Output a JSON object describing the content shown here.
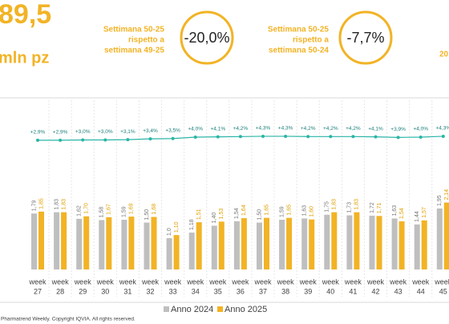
{
  "header": {
    "value": "89,5",
    "unit": "mln pz",
    "comparisons": [
      {
        "lines": [
          "Settimana 50-25",
          "rispetto a",
          "settimana 49-25"
        ],
        "change": "-20,0%"
      },
      {
        "lines": [
          "Settimana 50-25",
          "rispetto a",
          "settimana 50-24"
        ],
        "change": "-7,7%"
      }
    ],
    "cropped": "20"
  },
  "chart_data": {
    "type": "bar",
    "category_prefix": "week",
    "categories": [
      "27",
      "28",
      "29",
      "30",
      "31",
      "32",
      "33",
      "34",
      "35",
      "36",
      "37",
      "38",
      "39",
      "40",
      "41",
      "42",
      "43",
      "44",
      "45"
    ],
    "series": [
      {
        "name": "Anno 2024",
        "color": "#bfbfbf",
        "values": [
          1.79,
          1.83,
          1.62,
          1.58,
          1.59,
          1.5,
          1.0,
          1.18,
          1.4,
          1.54,
          1.5,
          1.59,
          1.63,
          1.75,
          1.73,
          1.72,
          1.63,
          1.44,
          1.95
        ],
        "value_labels": [
          "1,79",
          "1,83",
          "1,62",
          "1,58",
          "1,59",
          "1,50",
          "1,0",
          "1,18",
          "1,40",
          "1,54",
          "1,50",
          "1,59",
          "1,63",
          "1,75",
          "1,73",
          "1,72",
          "1,63",
          "1,44",
          "1,95"
        ]
      },
      {
        "name": "Anno 2025",
        "color": "#f2b325",
        "values": [
          1.85,
          1.83,
          1.7,
          1.67,
          1.69,
          1.68,
          1.1,
          1.51,
          1.53,
          1.64,
          1.65,
          1.65,
          1.6,
          1.83,
          1.83,
          1.71,
          1.54,
          1.57,
          2.14
        ],
        "value_labels": [
          "1,85",
          "1,83",
          "1,70",
          "1,67",
          "1,69",
          "1,68",
          "1,10",
          "1,51",
          "1,53",
          "1,64",
          "1,65",
          "1,65",
          "1,60",
          "1,83",
          "1,83",
          "1,71",
          "1,54",
          "1,57",
          "2,14"
        ]
      }
    ],
    "growth": {
      "color": "#2bb5a6",
      "values": [
        2.9,
        2.9,
        3.0,
        3.0,
        3.1,
        3.4,
        3.5,
        4.0,
        4.1,
        4.2,
        4.3,
        4.3,
        4.2,
        4.2,
        4.2,
        4.1,
        3.9,
        4.0,
        4.3
      ],
      "value_labels": [
        "+2,9%",
        "+2,9%",
        "+3,0%",
        "+3,0%",
        "+3,1%",
        "+3,4%",
        "+3,5%",
        "+4,0%",
        "+4,1%",
        "+4,2%",
        "+4,3%",
        "+4,3%",
        "+4,2%",
        "+4,2%",
        "+4,2%",
        "+4,1%",
        "+3,9%",
        "+4,0%",
        "+4,3%"
      ]
    }
  },
  "footer": "Pharmatrend Weekly. Copyright IQVIA. All rights reserved."
}
